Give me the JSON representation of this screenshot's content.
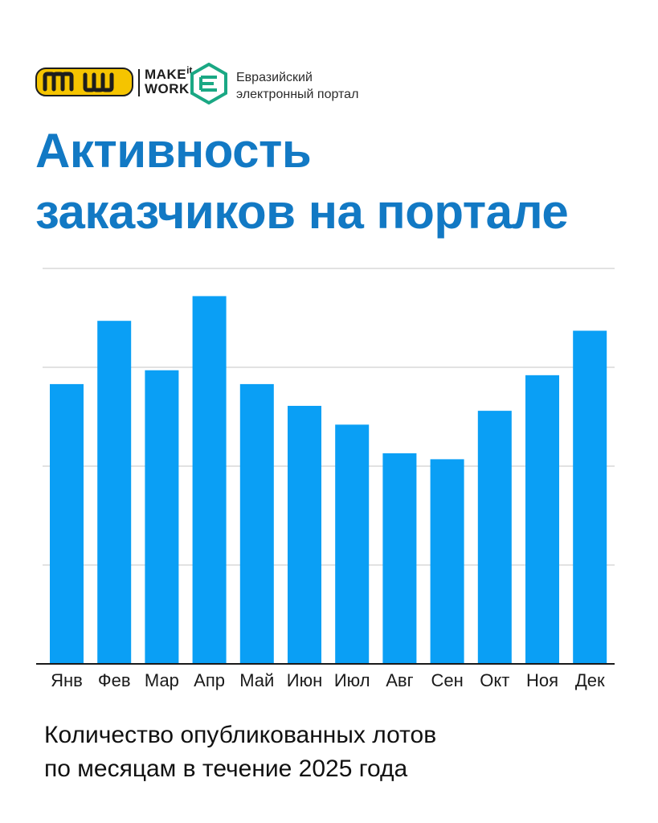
{
  "logos": {
    "makeitwork": {
      "line1": "MAKE",
      "it": "it",
      "line2": "WORK",
      "color": "#f5c400"
    },
    "portal": {
      "line1": "Евразийский",
      "line2": "электронный портал",
      "color": "#1aa884"
    }
  },
  "title": {
    "line1": "Активность",
    "line2": "заказчиков на портале"
  },
  "caption": {
    "line1": "Количество опубликованных лотов",
    "line2": "по месяцам в течение 2025 года"
  },
  "chart_data": {
    "type": "bar",
    "title": "",
    "xlabel": "",
    "ylabel": "",
    "categories": [
      "Янв",
      "Фев",
      "Мар",
      "Апр",
      "Май",
      "Июн",
      "Июл",
      "Авг",
      "Сен",
      "Окт",
      "Ноя",
      "Дек"
    ],
    "values": [
      2.83,
      3.47,
      2.97,
      3.72,
      2.83,
      2.61,
      2.42,
      2.13,
      2.07,
      2.56,
      2.92,
      3.37
    ],
    "ylim": [
      0,
      4
    ],
    "grid": true,
    "y_ticks_labeled": false,
    "bar_color": "#0a9ff5",
    "grid_color": "#d0d0d0"
  }
}
